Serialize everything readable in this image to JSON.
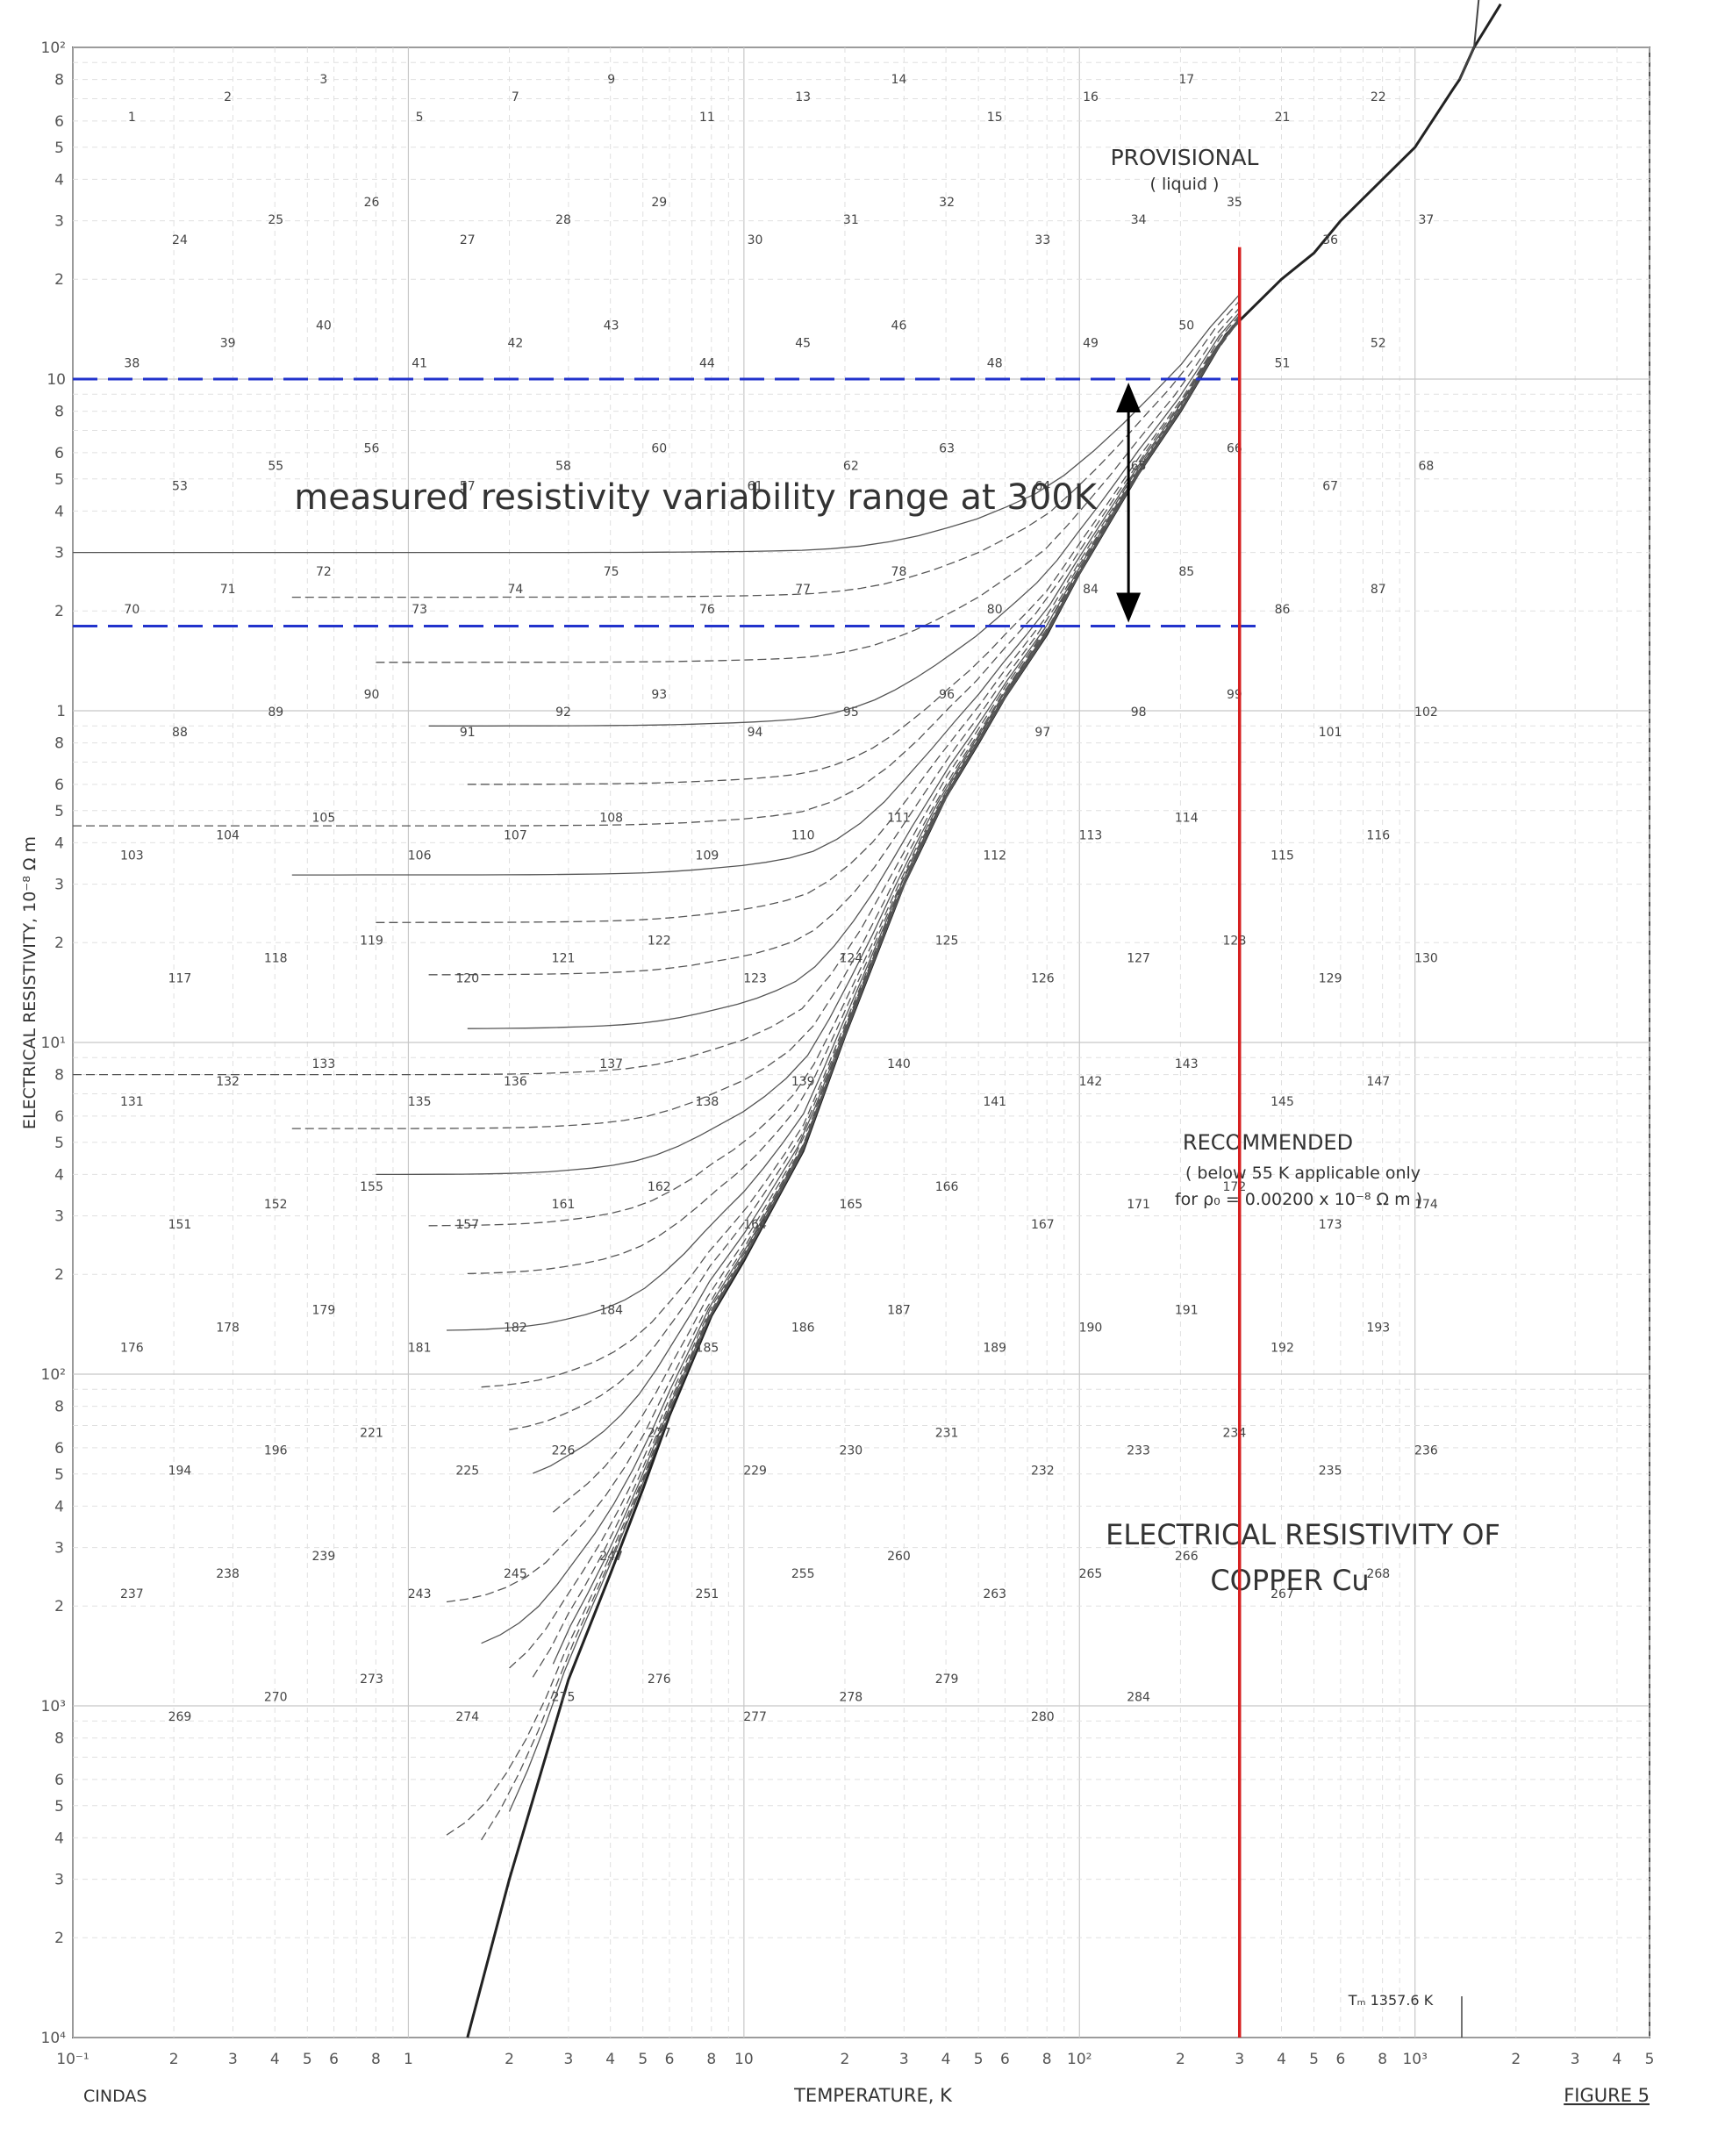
{
  "chart_data": {
    "type": "line",
    "title": "ELECTRICAL RESISTIVITY OF COPPER Cu",
    "title_line1": "ELECTRICAL RESISTIVITY OF",
    "title_line2": "COPPER   Cu",
    "xlabel": "TEMPERATURE, K",
    "ylabel": "ELECTRICAL RESISTIVITY, 10⁻⁸ Ω m",
    "x_scale": "log",
    "y_scale": "log",
    "xlim": [
      0.1,
      5000
    ],
    "ylim": [
      0.0001,
      100
    ],
    "grid": true,
    "x_decade_labels": [
      "10⁻¹",
      "1",
      "10",
      "10²",
      "10³"
    ],
    "x_minor_labels": [
      "2",
      "3",
      "4",
      "5",
      "6",
      "8"
    ],
    "y_decade_labels": [
      "10⁴",
      "10³",
      "10²",
      "10¹",
      "1",
      "10",
      "10²"
    ],
    "y_minor_labels": [
      "2",
      "3",
      "4",
      "5",
      "6",
      "8"
    ],
    "footer_left": "CINDAS",
    "footer_right": "FIGURE 5",
    "provisional_label": "PROVISIONAL",
    "provisional_sub": "( liquid )",
    "recommended_label": "RECOMMENDED",
    "recommended_note1": "( below  55 K  applicable only",
    "recommended_note2": "for ρ₀ = 0.00200 x 10⁻⁸ Ω m )",
    "melting_label": "Tₘ 1357.6 K",
    "melting_T": 1357.6,
    "annotation_text": "measured resistivity variability range at 300K",
    "annotation_T": 300,
    "range_top": 10,
    "range_bottom": 1.8,
    "colors": {
      "red_line": "#d62020",
      "blue_dash": "#2233cc",
      "arrow": "#000000",
      "curve": "#222222"
    },
    "recommended_curve": {
      "x": [
        1.5,
        2,
        3,
        4,
        5,
        6,
        8,
        10,
        15,
        20,
        30,
        40,
        50,
        60,
        80,
        100,
        150,
        200,
        273,
        300,
        400,
        500,
        600,
        800,
        1000,
        1300,
        1357.6,
        1500,
        1800
      ],
      "y": [
        0.0001,
        0.0003,
        0.0012,
        0.0025,
        0.0045,
        0.0075,
        0.015,
        0.022,
        0.047,
        0.105,
        0.3,
        0.55,
        0.8,
        1.1,
        1.7,
        2.6,
        5.2,
        8.0,
        13.6,
        15.0,
        20.0,
        24.0,
        30.0,
        40.0,
        50.0,
        75.0,
        80.0,
        100.0,
        135.0
      ],
      "note": ""
    },
    "curve_labels": [
      "1",
      "2",
      "3",
      "5",
      "7",
      "9",
      "11",
      "13",
      "14",
      "15",
      "16",
      "17",
      "21",
      "22",
      "24",
      "25",
      "26",
      "27",
      "28",
      "29",
      "30",
      "31",
      "32",
      "33",
      "34",
      "35",
      "36",
      "37",
      "38",
      "39",
      "40",
      "41",
      "42",
      "43",
      "44",
      "45",
      "46",
      "48",
      "49",
      "50",
      "51",
      "52",
      "53",
      "55",
      "56",
      "57",
      "58",
      "60",
      "61",
      "62",
      "63",
      "64",
      "65",
      "66",
      "67",
      "68",
      "70",
      "71",
      "72",
      "73",
      "74",
      "75",
      "76",
      "77",
      "78",
      "80",
      "84",
      "85",
      "86",
      "87",
      "88",
      "89",
      "90",
      "91",
      "92",
      "93",
      "94",
      "95",
      "96",
      "97",
      "98",
      "99",
      "101",
      "102",
      "103",
      "104",
      "105",
      "106",
      "107",
      "108",
      "109",
      "110",
      "111",
      "112",
      "113",
      "114",
      "115",
      "116",
      "117",
      "118",
      "119",
      "120",
      "121",
      "122",
      "123",
      "124",
      "125",
      "126",
      "127",
      "128",
      "129",
      "130",
      "131",
      "132",
      "133",
      "135",
      "136",
      "137",
      "138",
      "139",
      "140",
      "141",
      "142",
      "143",
      "145",
      "147",
      "151",
      "152",
      "155",
      "157",
      "161",
      "162",
      "164",
      "165",
      "166",
      "167",
      "171",
      "172",
      "173",
      "174",
      "176",
      "178",
      "179",
      "181",
      "182",
      "184",
      "185",
      "186",
      "187",
      "189",
      "190",
      "191",
      "192",
      "193",
      "194",
      "196",
      "221",
      "225",
      "226",
      "227",
      "229",
      "230",
      "231",
      "232",
      "233",
      "234",
      "235",
      "236",
      "237",
      "238",
      "239",
      "243",
      "245",
      "247",
      "251",
      "255",
      "260",
      "263",
      "265",
      "266",
      "267",
      "268",
      "269",
      "270",
      "273",
      "274",
      "275",
      "276",
      "277",
      "278",
      "279",
      "280",
      "284"
    ]
  }
}
